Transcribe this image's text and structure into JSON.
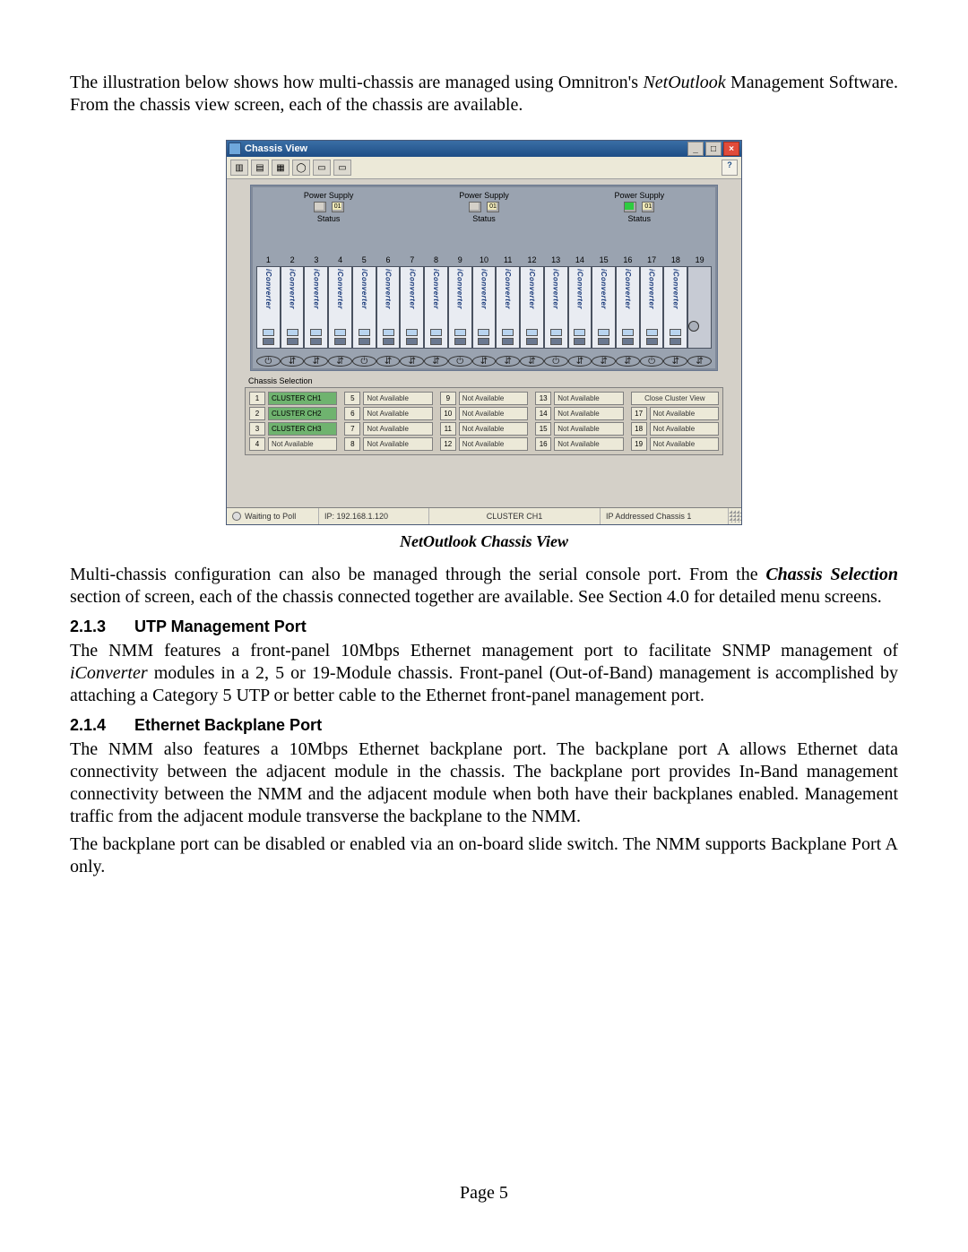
{
  "intro": {
    "pre": "The illustration below shows how multi-chassis are managed using Omnitron's ",
    "product": "NetOutlook",
    "post": " Management Software.  From the chassis view screen, each of the chassis are available."
  },
  "window": {
    "title": "Chassis View",
    "btn_min": "_",
    "btn_max": "□",
    "btn_close": "×",
    "help": "?",
    "toolbar_icons": [
      "▥",
      "▤",
      "▦",
      "◯",
      "▭",
      "▭"
    ],
    "powersupply_label": "Power Supply",
    "status_label": "Status",
    "ps": [
      {
        "n": "01",
        "on": false
      },
      {
        "n": "01",
        "on": false
      },
      {
        "n": "01",
        "on": true
      }
    ],
    "slot_numbers": [
      "1",
      "2",
      "3",
      "4",
      "5",
      "6",
      "7",
      "8",
      "9",
      "10",
      "11",
      "12",
      "13",
      "14",
      "15",
      "16",
      "17",
      "18",
      "19"
    ],
    "slot_label": "iConverter",
    "icon_glyphs": {
      "power": "⏻",
      "updown": "⇵",
      "dot": "•"
    },
    "selection": {
      "group_label": "Chassis Selection",
      "close_label": "Close Cluster View",
      "na": "Not Available",
      "items": [
        {
          "n": "1",
          "label": "CLUSTER CH1",
          "cluster": true
        },
        {
          "n": "2",
          "label": "CLUSTER CH2",
          "cluster": true
        },
        {
          "n": "3",
          "label": "CLUSTER CH3",
          "cluster": true
        },
        {
          "n": "4",
          "label": "Not Available",
          "cluster": false
        },
        {
          "n": "5",
          "label": "Not Available",
          "cluster": false
        },
        {
          "n": "6",
          "label": "Not Available",
          "cluster": false
        },
        {
          "n": "7",
          "label": "Not Available",
          "cluster": false
        },
        {
          "n": "8",
          "label": "Not Available",
          "cluster": false
        },
        {
          "n": "9",
          "label": "Not Available",
          "cluster": false
        },
        {
          "n": "10",
          "label": "Not Available",
          "cluster": false
        },
        {
          "n": "11",
          "label": "Not Available",
          "cluster": false
        },
        {
          "n": "12",
          "label": "Not Available",
          "cluster": false
        },
        {
          "n": "13",
          "label": "Not Available",
          "cluster": false
        },
        {
          "n": "14",
          "label": "Not Available",
          "cluster": false
        },
        {
          "n": "15",
          "label": "Not Available",
          "cluster": false
        },
        {
          "n": "16",
          "label": "Not Available",
          "cluster": false
        },
        {
          "n": "17",
          "label": "Not Available",
          "cluster": false
        },
        {
          "n": "18",
          "label": "Not Available",
          "cluster": false
        },
        {
          "n": "19",
          "label": "Not Available",
          "cluster": false
        }
      ]
    },
    "statusbar": {
      "waiting": "Waiting to Poll",
      "ip": "IP: 192.168.1.120",
      "center": "CLUSTER CH1",
      "right": "IP Addressed Chassis 1"
    }
  },
  "caption": "NetOutlook Chassis View",
  "multi": {
    "pre": "Multi-chassis configuration can also be managed through the serial console port.  From the ",
    "em": "Chassis Selection",
    "post": " section of screen, each of the chassis connected together are available.  See Section 4.0 for detailed menu screens."
  },
  "heading213": {
    "num": "2.1.3",
    "title": "UTP Management Port"
  },
  "para213": {
    "pre": "The NMM features a front-panel 10Mbps Ethernet management port to facilitate SNMP management of ",
    "em": "iConverter",
    "post": " modules in a 2, 5 or 19-Module chassis.  Front-panel (Out-of-Band) management is accomplished by attaching a Category 5 UTP or better cable to the Ethernet front-panel management port."
  },
  "heading214": {
    "num": "2.1.4",
    "title": "Ethernet Backplane Port"
  },
  "para214a": "The NMM also features a 10Mbps Ethernet backplane port.  The backplane port A allows Ethernet data connectivity between the adjacent module in the chassis.  The backplane port provides In-Band management connectivity between the NMM and the adjacent module when both have their backplanes enabled.  Management traffic from the adjacent module transverse the backplane to the NMM.",
  "para214b": "The backplane port can be disabled or enabled via an on-board slide switch.  The NMM supports Backplane Port A only.",
  "page_number": "Page 5"
}
